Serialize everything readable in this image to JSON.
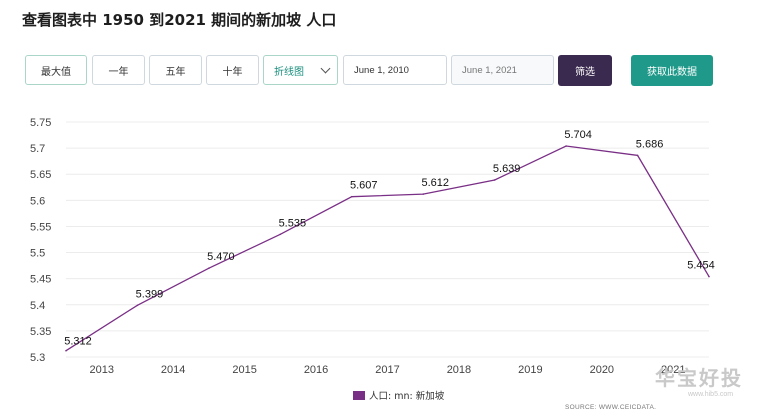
{
  "page": {
    "title": "查看图表中 1950 到2021 期间的新加坡 人口"
  },
  "toolbar": {
    "range_buttons": [
      {
        "label": "最大值",
        "active": true
      },
      {
        "label": "一年",
        "active": false
      },
      {
        "label": "五年",
        "active": false
      },
      {
        "label": "十年",
        "active": false
      }
    ],
    "chart_type_select": "折线图",
    "start_date": "June 1, 2010",
    "end_date": "June 1, 2021",
    "filter_label": "筛选",
    "get_data_label": "获取此数据"
  },
  "chart_data": {
    "type": "line",
    "title": "",
    "xlabel": "",
    "ylabel": "",
    "x": [
      2012.5,
      2013.5,
      2014.5,
      2015.5,
      2016.5,
      2017.5,
      2018.5,
      2019.5,
      2020.5,
      2021.5
    ],
    "x_ticks": [
      "2013",
      "2014",
      "2015",
      "2016",
      "2017",
      "2018",
      "2019",
      "2020",
      "2021"
    ],
    "y_ticks": [
      "5.3",
      "5.35",
      "5.4",
      "5.45",
      "5.5",
      "5.55",
      "5.6",
      "5.65",
      "5.7",
      "5.75"
    ],
    "ylim": [
      5.3,
      5.75
    ],
    "grid": true,
    "legend_position": "bottom-center",
    "series": [
      {
        "name": "人口: mn: 新加坡",
        "color": "#7a2f86",
        "values": [
          5.312,
          5.399,
          5.47,
          5.535,
          5.607,
          5.612,
          5.639,
          5.704,
          5.686,
          5.454
        ],
        "labels": [
          "5.312",
          "5.399",
          "5.470",
          "5.535",
          "5.607",
          "5.612",
          "5.639",
          "5.704",
          "5.686",
          "5.454"
        ]
      }
    ]
  },
  "legend": {
    "label": "人口: mn: 新加坡",
    "color": "#7a2f86"
  },
  "source": "SOURCE: WWW.CEICDATA.",
  "watermark": {
    "text": "华宝好投",
    "url": "www.hib5.com"
  },
  "colors": {
    "accent_purple": "#3b2a4f",
    "accent_teal": "#1f9a8a",
    "series_line": "#7a2f86"
  }
}
